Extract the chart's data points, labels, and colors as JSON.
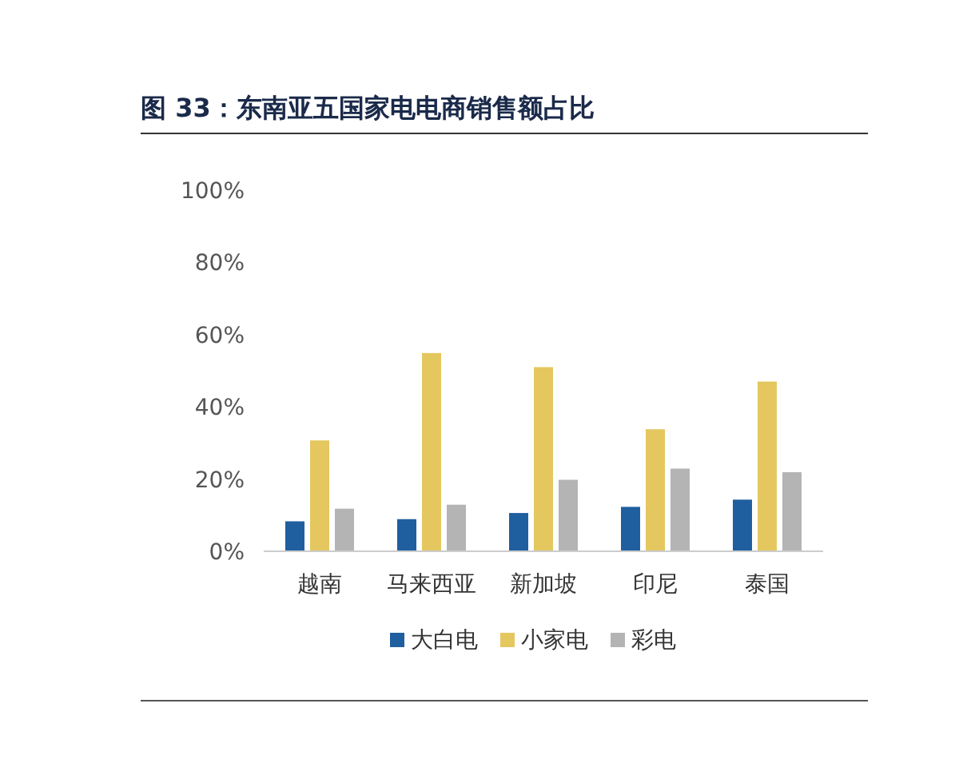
{
  "chart_data": {
    "type": "bar",
    "title": "图 33：东南亚五国家电电商销售额占比",
    "categories": [
      "越南",
      "马来西亚",
      "新加坡",
      "印尼",
      "泰国"
    ],
    "series": [
      {
        "name": "大白电",
        "color": "#1f5f9f",
        "values": [
          8.3,
          8.9,
          10.6,
          12.3,
          14.3
        ]
      },
      {
        "name": "小家电",
        "color": "#e5c75f",
        "values": [
          30.7,
          54.9,
          51,
          33.8,
          47
        ]
      },
      {
        "name": "彩电",
        "color": "#b4b4b4",
        "values": [
          11.8,
          12.9,
          19.8,
          22.9,
          21.9
        ]
      }
    ],
    "ylim": [
      0,
      100
    ],
    "yticks": [
      {
        "value": 0,
        "label": "0%"
      },
      {
        "value": 20,
        "label": "20%"
      },
      {
        "value": 40,
        "label": "40%"
      },
      {
        "value": 60,
        "label": "60%"
      },
      {
        "value": 80,
        "label": "80%"
      },
      {
        "value": 100,
        "label": "100%"
      }
    ],
    "grid": false,
    "legend": "bottom"
  }
}
